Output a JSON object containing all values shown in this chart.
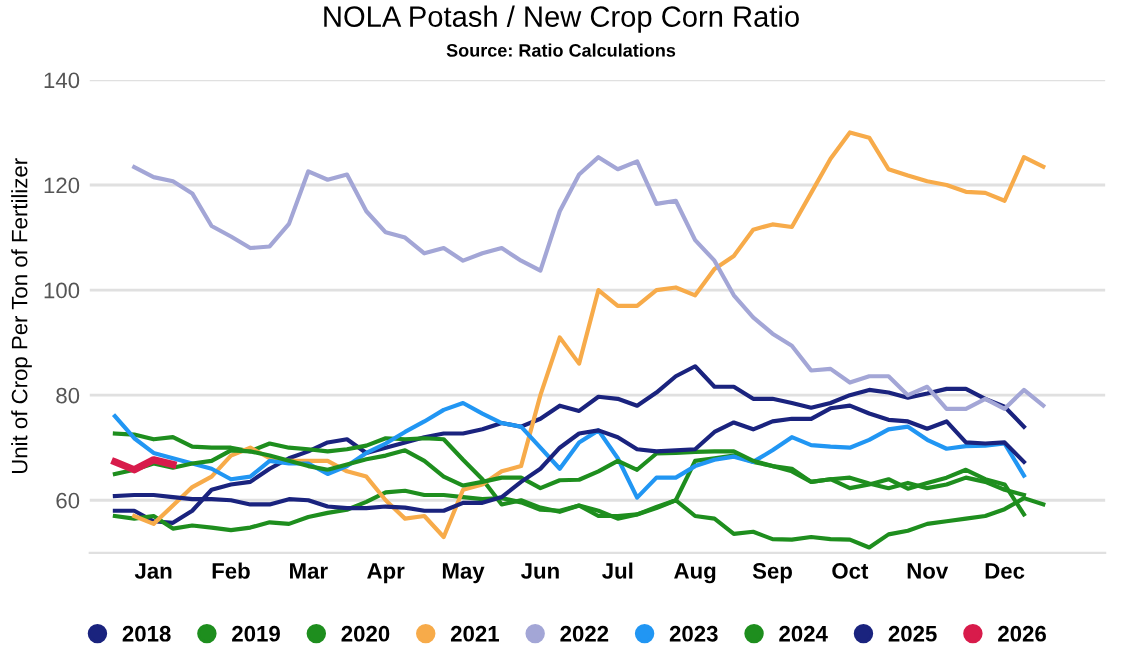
{
  "chart_data": {
    "type": "line",
    "title": "NOLA Potash / New Crop Corn Ratio",
    "subtitle": "Source: Ratio Calculations",
    "ylabel": "Unit of Crop Per Ton of Fertilizer",
    "categories": [
      null,
      null,
      "Jan",
      null,
      null,
      null,
      "Feb",
      null,
      null,
      null,
      "Mar",
      null,
      null,
      null,
      "Apr",
      null,
      null,
      null,
      "May",
      null,
      null,
      null,
      "Jun",
      null,
      null,
      null,
      "Jul",
      null,
      null,
      null,
      "Aug",
      null,
      null,
      null,
      "Sep",
      null,
      null,
      null,
      "Oct",
      null,
      null,
      null,
      "Nov",
      null,
      null,
      null,
      "Dec",
      null,
      null
    ],
    "ylim": [
      50,
      140
    ],
    "yticks": [
      60,
      80,
      100,
      120,
      140
    ],
    "grid": "y",
    "legend": "bottom",
    "marker": "none",
    "line_style": "solid",
    "series": [
      {
        "name": "2018",
        "color": "#1a237e",
        "values": [
          58,
          58,
          56,
          55.7,
          58,
          62,
          63,
          63.5,
          66,
          68,
          69.3,
          71,
          71.6,
          69,
          70,
          71,
          72,
          72.7,
          72.7,
          73.5,
          74.7,
          74,
          75.5,
          78,
          77,
          79.7,
          79.3,
          78,
          80.5,
          83.6,
          85.5,
          81.6,
          81.6,
          79.3,
          79.3,
          78.5,
          77.6,
          78.5,
          80,
          81,
          80.5,
          79.5,
          80.3,
          81.2,
          81.2,
          79.3,
          77.8,
          74,
          null
        ]
      },
      {
        "name": "2019",
        "color": "#1e8e1e",
        "values": [
          72.7,
          72.5,
          71.6,
          72,
          70.2,
          70,
          70,
          69.3,
          70.8,
          70,
          69.7,
          69.3,
          69.7,
          70.4,
          71.8,
          71.6,
          71.8,
          71.6,
          67.7,
          64,
          59.2,
          60,
          58.6,
          57.8,
          59,
          58,
          56.5,
          57.3,
          58.5,
          60,
          57,
          56.5,
          53.6,
          54,
          52.6,
          52.5,
          53,
          52.6,
          52.5,
          51,
          53.5,
          54.2,
          55.5,
          56,
          56.5,
          57,
          58.3,
          60.4,
          59.2
        ]
      },
      {
        "name": "2020",
        "color": "#1e8e1e",
        "values": [
          57,
          56.5,
          57,
          54.6,
          55.2,
          54.8,
          54.3,
          54.8,
          55.8,
          55.5,
          56.8,
          57.6,
          58.2,
          59.7,
          61.5,
          61.8,
          61,
          61,
          60.6,
          60.2,
          60.4,
          59.6,
          58.2,
          58,
          59,
          57,
          57,
          57.3,
          58.7,
          60,
          67.5,
          68,
          68.5,
          67.3,
          66.5,
          65.5,
          63.5,
          64,
          62.3,
          63,
          64,
          62.2,
          63.3,
          64.3,
          65.8,
          64,
          63,
          57.3,
          null
        ]
      },
      {
        "name": "2021",
        "color": "#f7ab4a",
        "values": [
          null,
          57,
          55.5,
          59,
          62.5,
          64.5,
          68.5,
          70,
          68,
          67.5,
          67.5,
          67.5,
          65.5,
          64.5,
          60,
          56.5,
          57,
          53,
          62,
          63,
          65.5,
          66.5,
          80,
          91,
          86,
          100,
          97,
          97,
          100,
          100.5,
          99,
          104,
          106.5,
          111.5,
          112.5,
          112,
          118.5,
          125,
          130,
          129,
          123,
          121.8,
          120.7,
          120,
          118.7,
          118.5,
          117,
          125.3,
          123.5
        ]
      },
      {
        "name": "2022",
        "color": "#a3a6d6",
        "values": [
          null,
          123.4,
          121.5,
          120.7,
          118.4,
          112.2,
          110.2,
          108,
          108.3,
          112.6,
          122.6,
          121,
          122,
          115,
          111,
          110,
          107,
          108,
          105.6,
          107,
          108,
          105.6,
          103.7,
          115,
          122,
          125.3,
          123,
          124.5,
          116.4,
          117,
          109.5,
          105.6,
          99,
          94.8,
          91.7,
          89.4,
          84.7,
          85,
          82.4,
          83.6,
          83.6,
          80,
          81.6,
          77.4,
          77.4,
          79.3,
          77.4,
          81,
          78
        ]
      },
      {
        "name": "2023",
        "color": "#2196f3",
        "values": [
          76,
          71.8,
          69,
          68,
          67,
          66,
          64,
          64.5,
          67.5,
          67,
          67,
          65,
          66.5,
          69,
          70.8,
          73,
          75,
          77.2,
          78.5,
          76.5,
          74.7,
          74,
          70,
          66,
          71,
          73.3,
          68,
          60.5,
          64.3,
          64.3,
          66.5,
          67.7,
          68.3,
          67.3,
          69.5,
          72,
          70.5,
          70.2,
          70,
          71.5,
          73.5,
          74,
          71.5,
          69.8,
          70.3,
          70.4,
          70.8,
          64.7,
          null
        ]
      },
      {
        "name": "2024",
        "color": "#1e8e1e",
        "values": [
          65,
          65.8,
          67,
          66.2,
          67,
          67.5,
          69.5,
          69.3,
          68.5,
          67.5,
          66.5,
          65.8,
          66.8,
          67.8,
          68.5,
          69.5,
          67.5,
          64.5,
          62.8,
          63.5,
          64.3,
          64.3,
          62.3,
          63.8,
          63.9,
          65.5,
          67.5,
          65.8,
          68.9,
          69,
          69.2,
          69.3,
          69.3,
          67.5,
          66.5,
          66,
          63.5,
          64,
          64.3,
          63.2,
          62.3,
          63.3,
          62.3,
          63,
          64.3,
          63.5,
          62,
          61,
          null
        ]
      },
      {
        "name": "2025",
        "color": "#1a237e",
        "values": [
          60.8,
          61,
          61,
          60.6,
          60.2,
          60.2,
          60,
          59.2,
          59.2,
          60.2,
          60,
          58.8,
          58.5,
          58.5,
          58.8,
          58.6,
          58,
          58,
          59.5,
          59.5,
          60.6,
          63.5,
          66,
          70,
          72.7,
          73.3,
          72,
          69.7,
          69.3,
          69.5,
          69.7,
          73,
          74.8,
          73.5,
          75,
          75.5,
          75.5,
          77.5,
          78,
          76.5,
          75.3,
          75,
          73.6,
          75,
          71,
          70.8,
          71,
          67.3,
          null
        ]
      },
      {
        "name": "2026",
        "color": "#d81b4b",
        "values": [
          67.3,
          65.8,
          67.7,
          66.8,
          null,
          null,
          null,
          null,
          null,
          null,
          null,
          null,
          null,
          null,
          null,
          null,
          null,
          null,
          null,
          null,
          null,
          null,
          null,
          null,
          null,
          null,
          null,
          null,
          null,
          null,
          null,
          null,
          null,
          null,
          null,
          null,
          null,
          null,
          null,
          null,
          null,
          null,
          null,
          null,
          null,
          null,
          null,
          null,
          null
        ]
      }
    ]
  }
}
